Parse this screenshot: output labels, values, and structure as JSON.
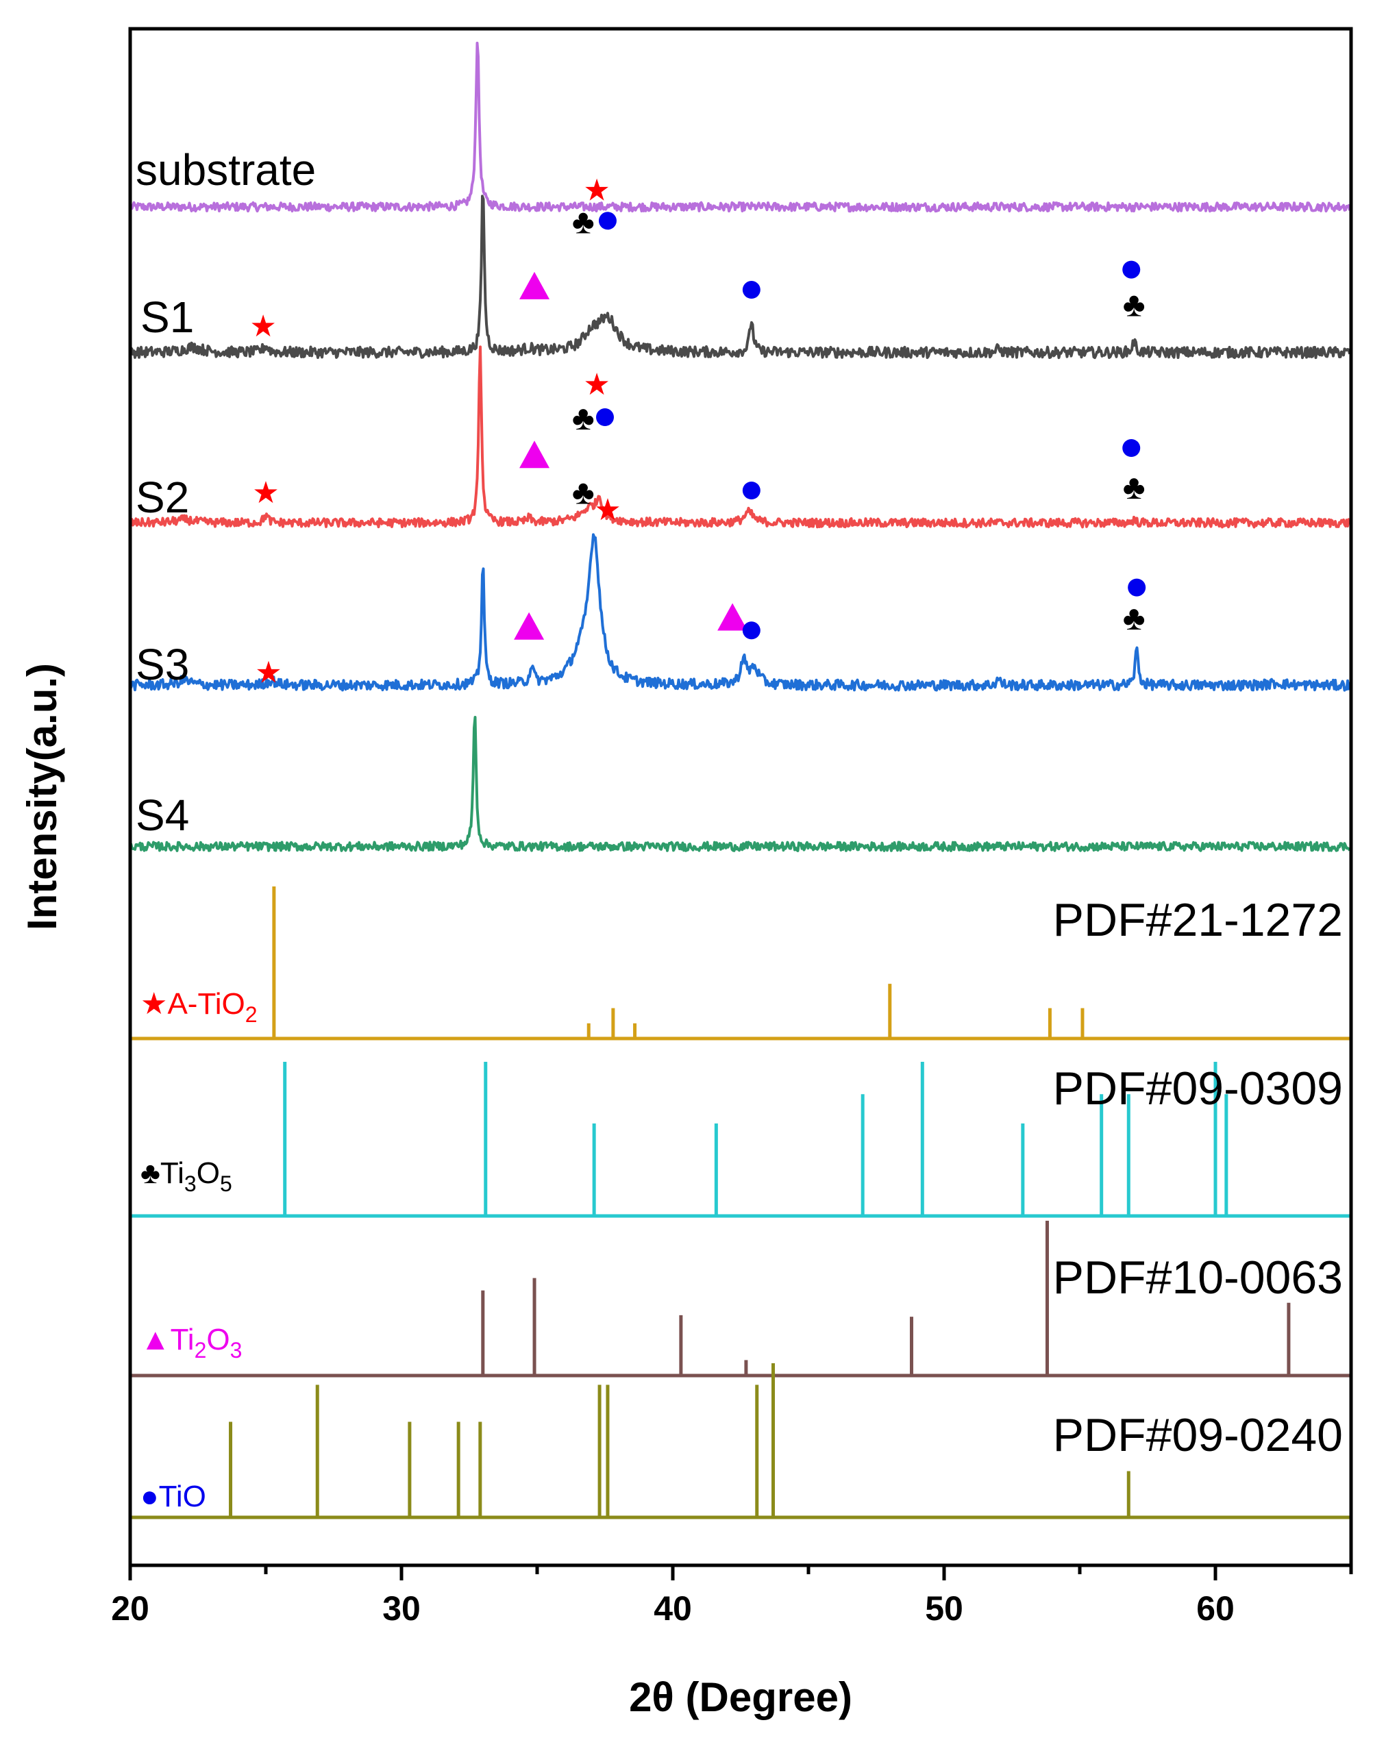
{
  "chart_data": {
    "type": "line",
    "subtype": "xrd-stacked",
    "xlabel": "2θ (Degree)",
    "ylabel": "Intensity(a.u.)",
    "xlim": [
      20,
      65
    ],
    "xticks": [
      20,
      30,
      40,
      50,
      60
    ],
    "series": [
      {
        "name": "substrate",
        "color": "#b86fdc",
        "baseline": 0.0,
        "peaks": [
          [
            32.8,
            16.0,
            0.07
          ]
        ],
        "noise": 0.4
      },
      {
        "name": "S1",
        "color": "#4a4a4a",
        "baseline": 1.0,
        "peaks": [
          [
            33.0,
            16.0,
            0.06
          ],
          [
            37.6,
            3.0,
            0.45
          ],
          [
            37.0,
            1.4,
            0.35
          ],
          [
            42.9,
            3.0,
            0.08
          ],
          [
            57.0,
            1.0,
            0.08
          ],
          [
            25.0,
            0.6,
            0.12
          ],
          [
            22.3,
            0.5,
            0.4
          ],
          [
            34.7,
            0.3,
            0.3
          ],
          [
            52.0,
            0.3,
            0.1
          ]
        ],
        "noise": 0.5
      },
      {
        "name": "S2",
        "color": "#ef4b4b",
        "baseline": 0.95,
        "peaks": [
          [
            32.9,
            17.0,
            0.06
          ],
          [
            37.3,
            1.6,
            0.1
          ],
          [
            37.0,
            1.5,
            0.45
          ],
          [
            42.8,
            1.0,
            0.2
          ],
          [
            57.0,
            0.3,
            0.08
          ],
          [
            25.0,
            0.7,
            0.1
          ],
          [
            22.0,
            0.3,
            0.4
          ],
          [
            34.7,
            0.4,
            0.1
          ]
        ],
        "noise": 0.4
      },
      {
        "name": "S3",
        "color": "#1f6fd6",
        "baseline": 0.95,
        "peaks": [
          [
            33.0,
            11.0,
            0.06
          ],
          [
            37.1,
            12.5,
            0.25
          ],
          [
            36.6,
            2.0,
            0.45
          ],
          [
            42.6,
            2.2,
            0.12
          ],
          [
            43.0,
            1.5,
            0.2
          ],
          [
            34.8,
            1.6,
            0.08
          ],
          [
            57.1,
            3.2,
            0.07
          ],
          [
            52.0,
            0.6,
            0.08
          ],
          [
            25.2,
            0.4,
            0.2
          ],
          [
            22.0,
            0.4,
            0.3
          ],
          [
            62.3,
            0.2,
            0.3
          ]
        ],
        "noise": 0.45
      },
      {
        "name": "S4",
        "color": "#2e9c6a",
        "baseline": 0.6,
        "peaks": [
          [
            32.7,
            13.0,
            0.06
          ]
        ],
        "noise": 0.4
      }
    ],
    "references": [
      {
        "pdf": "PDF#21-1272",
        "phase": "A-TiO",
        "phase_sub": "2",
        "marker": "★",
        "marker_color": "#ff0000",
        "label_color": "#ff0000",
        "color": "#d4a017",
        "lines": [
          [
            25.3,
            1.0
          ],
          [
            36.9,
            0.1
          ],
          [
            37.8,
            0.2
          ],
          [
            38.6,
            0.1
          ],
          [
            48.0,
            0.36
          ],
          [
            53.9,
            0.2
          ],
          [
            55.1,
            0.2
          ]
        ]
      },
      {
        "pdf": "PDF#09-0309",
        "phase": "Ti",
        "phase_sub": "3",
        "phase2": "O",
        "phase2_sub": "5",
        "marker": "♣",
        "marker_color": "#000000",
        "label_color": "#000000",
        "color": "#27c9cf",
        "lines": [
          [
            25.7,
            1.0
          ],
          [
            33.1,
            1.0
          ],
          [
            37.1,
            0.6
          ],
          [
            41.6,
            0.6
          ],
          [
            47.0,
            0.79
          ],
          [
            49.2,
            1.0
          ],
          [
            52.9,
            0.6
          ],
          [
            55.8,
            0.79
          ],
          [
            56.8,
            0.79
          ],
          [
            60.0,
            1.0
          ],
          [
            60.4,
            0.79
          ]
        ]
      },
      {
        "pdf": "PDF#10-0063",
        "phase": "Ti",
        "phase_sub": "2",
        "phase2": "O",
        "phase2_sub": "3",
        "marker": "▲",
        "marker_color": "#ee00ee",
        "label_color": "#ee00ee",
        "color": "#7a5150",
        "lines": [
          [
            33.0,
            0.55
          ],
          [
            34.9,
            0.63
          ],
          [
            40.3,
            0.39
          ],
          [
            42.7,
            0.1
          ],
          [
            48.8,
            0.38
          ],
          [
            53.8,
            1.0
          ],
          [
            62.7,
            0.47
          ]
        ]
      },
      {
        "pdf": "PDF#09-0240",
        "phase": "TiO",
        "marker": "●",
        "marker_color": "#0000ee",
        "label_color": "#0000ee",
        "color": "#8b8b1a",
        "lines": [
          [
            23.7,
            0.62
          ],
          [
            26.9,
            0.86
          ],
          [
            30.3,
            0.62
          ],
          [
            32.1,
            0.62
          ],
          [
            32.9,
            0.62
          ],
          [
            37.3,
            0.86
          ],
          [
            37.6,
            0.86
          ],
          [
            43.1,
            0.86
          ],
          [
            43.7,
            1.0
          ],
          [
            56.8,
            0.3
          ]
        ]
      }
    ],
    "annotations": [
      {
        "series": "S1",
        "x": 24.9,
        "h": 3.5,
        "symbol": "★",
        "color": "#ff0000"
      },
      {
        "series": "S1",
        "x": 34.9,
        "h": 7.3,
        "symbol": "▲",
        "color": "#ee00ee"
      },
      {
        "series": "S1",
        "x": 36.7,
        "h": 13.2,
        "symbol": "♣",
        "color": "#000000"
      },
      {
        "series": "S1",
        "x": 37.2,
        "h": 16.3,
        "symbol": "★",
        "color": "#ff0000"
      },
      {
        "series": "S1",
        "x": 37.6,
        "h": 13.4,
        "symbol": "●",
        "color": "#0000ee"
      },
      {
        "series": "S1",
        "x": 42.9,
        "h": 6.9,
        "symbol": "●",
        "color": "#0000ee"
      },
      {
        "series": "S1",
        "x": 56.9,
        "h": 8.8,
        "symbol": "●",
        "color": "#0000ee"
      },
      {
        "series": "S1",
        "x": 57.0,
        "h": 5.4,
        "symbol": "♣",
        "color": "#000000"
      },
      {
        "series": "S2",
        "x": 25.0,
        "h": 3.8,
        "symbol": "★",
        "color": "#ff0000"
      },
      {
        "series": "S2",
        "x": 34.9,
        "h": 7.4,
        "symbol": "▲",
        "color": "#ee00ee"
      },
      {
        "series": "S2",
        "x": 36.7,
        "h": 10.7,
        "symbol": "♣",
        "color": "#000000"
      },
      {
        "series": "S2",
        "x": 37.2,
        "h": 14.0,
        "symbol": "★",
        "color": "#ff0000"
      },
      {
        "series": "S2",
        "x": 37.5,
        "h": 10.9,
        "symbol": "●",
        "color": "#0000ee"
      },
      {
        "series": "S2",
        "x": 42.9,
        "h": 4.0,
        "symbol": "●",
        "color": "#0000ee"
      },
      {
        "series": "S2",
        "x": 56.9,
        "h": 8.0,
        "symbol": "●",
        "color": "#0000ee"
      },
      {
        "series": "S2",
        "x": 57.0,
        "h": 4.2,
        "symbol": "♣",
        "color": "#000000"
      },
      {
        "series": "S3",
        "x": 25.1,
        "h": 2.1,
        "symbol": "★",
        "color": "#ff0000"
      },
      {
        "series": "S3",
        "x": 34.7,
        "h": 6.2,
        "symbol": "▲",
        "color": "#ee00ee"
      },
      {
        "series": "S3",
        "x": 36.7,
        "h": 17.9,
        "symbol": "♣",
        "color": "#000000"
      },
      {
        "series": "S3",
        "x": 37.6,
        "h": 16.5,
        "symbol": "★",
        "color": "#ff0000"
      },
      {
        "series": "S3",
        "x": 42.2,
        "h": 7.0,
        "symbol": "▲",
        "color": "#ee00ee"
      },
      {
        "series": "S3",
        "x": 42.9,
        "h": 5.8,
        "symbol": "●",
        "color": "#0000ee"
      },
      {
        "series": "S3",
        "x": 57.1,
        "h": 9.6,
        "symbol": "●",
        "color": "#0000ee"
      },
      {
        "series": "S3",
        "x": 57.0,
        "h": 6.8,
        "symbol": "♣",
        "color": "#000000"
      }
    ]
  }
}
